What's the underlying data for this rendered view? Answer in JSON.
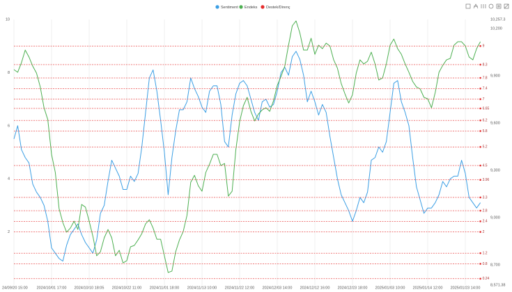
{
  "chart_data": {
    "type": "line",
    "categories": [
      "24/09/20 15:00",
      null,
      null,
      null,
      null,
      null,
      null,
      null,
      null,
      null,
      "2024/10/01 17:00",
      null,
      null,
      null,
      null,
      null,
      null,
      null,
      null,
      null,
      "2024/10/10 18:05",
      null,
      null,
      null,
      null,
      null,
      null,
      null,
      null,
      null,
      "2024/10/22 11:00",
      null,
      null,
      null,
      null,
      null,
      null,
      null,
      null,
      null,
      "2024/11/01 18:00",
      null,
      null,
      null,
      null,
      null,
      null,
      null,
      null,
      null,
      "2024/11/13 10:00",
      null,
      null,
      null,
      null,
      null,
      null,
      null,
      null,
      null,
      "2024/11/22 12:00",
      null,
      null,
      null,
      null,
      null,
      null,
      null,
      null,
      null,
      "2024/12/03 14:00",
      null,
      null,
      null,
      null,
      null,
      null,
      null,
      null,
      null,
      "2024/12/12 16:00",
      null,
      null,
      null,
      null,
      null,
      null,
      null,
      null,
      null,
      "2024/12/23 18:00",
      null,
      null,
      null,
      null,
      null,
      null,
      null,
      null,
      null,
      "2025/01/03 10:00",
      null,
      null,
      null,
      null,
      null,
      null,
      null,
      null,
      null,
      "2025/01/14 12:00",
      null,
      null,
      null,
      null,
      null,
      null,
      null,
      null,
      null,
      "2025/01/23 14:00",
      null,
      null,
      null,
      null
    ],
    "series": [
      {
        "name": "Sentiment",
        "color": "#3a9ee4",
        "axis": "y",
        "values": [
          5.5,
          6.0,
          5.1,
          4.8,
          4.6,
          3.8,
          3.5,
          3.3,
          3.0,
          2.4,
          1.4,
          1.2,
          1.0,
          0.9,
          1.5,
          1.9,
          2.1,
          2.3,
          1.9,
          1.6,
          1.4,
          1.2,
          1.7,
          2.7,
          3.0,
          3.9,
          4.7,
          4.4,
          4.1,
          3.6,
          3.6,
          4.1,
          3.9,
          4.2,
          5.2,
          6.5,
          7.8,
          8.1,
          7.3,
          6.2,
          5.0,
          3.4,
          4.8,
          5.8,
          6.6,
          6.6,
          6.9,
          7.8,
          7.4,
          7.1,
          6.7,
          6.5,
          7.3,
          7.5,
          7.5,
          6.8,
          5.4,
          5.2,
          6.4,
          7.2,
          7.6,
          7.7,
          7.5,
          7.0,
          6.5,
          6.2,
          6.9,
          7.0,
          6.7,
          6.8,
          7.3,
          8.0,
          8.2,
          7.9,
          8.6,
          8.8,
          8.5,
          7.9,
          6.9,
          7.3,
          6.9,
          6.4,
          6.8,
          6.5,
          5.6,
          4.8,
          4.0,
          3.4,
          3.1,
          2.8,
          2.4,
          2.8,
          3.3,
          3.1,
          3.5,
          4.7,
          4.8,
          5.2,
          5.0,
          5.4,
          6.5,
          7.6,
          7.7,
          6.9,
          6.5,
          6.0,
          4.8,
          3.7,
          3.2,
          2.7,
          2.9,
          2.9,
          3.1,
          3.4,
          3.9,
          3.7,
          4.0,
          4.1,
          4.1,
          4.7,
          4.2,
          3.3,
          3.1,
          2.9,
          3.1
        ]
      },
      {
        "name": "Endeks",
        "color": "#4caf50",
        "axis": "y2",
        "values": [
          9939,
          9922,
          9983,
          10063,
          10019,
          9961,
          9917,
          9829,
          9697,
          9622,
          9401,
          9286,
          9057,
          8968,
          8907,
          8933,
          8977,
          8924,
          9083,
          9066,
          8977,
          8880,
          8757,
          8783,
          8871,
          8924,
          8871,
          8757,
          8792,
          8712,
          8726,
          8814,
          8823,
          8858,
          8898,
          8960,
          8986,
          8933,
          8862,
          8862,
          8757,
          8651,
          8660,
          8783,
          8858,
          8911,
          9013,
          9224,
          9268,
          9202,
          9167,
          9286,
          9339,
          9401,
          9401,
          9330,
          9343,
          9136,
          9167,
          9432,
          9608,
          9710,
          9763,
          9674,
          9613,
          9657,
          9683,
          9697,
          9674,
          9741,
          9838,
          9895,
          9961,
          10094,
          10217,
          10248,
          10173,
          10063,
          10063,
          10138,
          10036,
          10094,
          10072,
          10107,
          10089,
          10001,
          9948,
          9851,
          9785,
          9727,
          9780,
          9917,
          10001,
          9975,
          9992,
          10050,
          9975,
          9873,
          9886,
          9975,
          10094,
          10133,
          10072,
          10036,
          9975,
          9922,
          9864,
          9829,
          9816,
          9763,
          9754,
          9697,
          9794,
          9922,
          9966,
          10001,
          10010,
          10094,
          10116,
          10116,
          10089,
          10019,
          10001,
          10072,
          10116
        ]
      },
      {
        "name": "Destek/Direnç",
        "color": "#e52b2b",
        "axis": "y",
        "levels": [
          9,
          8.3,
          7.8,
          7.4,
          7,
          6.65,
          6.2,
          5.8,
          5.2,
          4.5,
          3.96,
          3.3,
          2.8,
          2.4,
          2,
          1.2,
          0.8,
          0.24
        ]
      }
    ],
    "ylim": [
      0,
      10
    ],
    "yticks": [
      2,
      4,
      6,
      8,
      10
    ],
    "y2lim": [
      8571.38,
      10257.3
    ],
    "y2ticks": [
      {
        "value": 8571.38,
        "label": "8,571.38"
      },
      {
        "value": 8700,
        "label": "8,700"
      },
      {
        "value": 9000,
        "label": "9,000"
      },
      {
        "value": 9300,
        "label": "9,300"
      },
      {
        "value": 9600,
        "label": "9,600"
      },
      {
        "value": 9900,
        "label": "9,900"
      },
      {
        "value": 10200,
        "label": "10,200"
      },
      {
        "value": 10257.3,
        "label": "10,257.3"
      }
    ],
    "xgrid": true,
    "legend": "top"
  }
}
